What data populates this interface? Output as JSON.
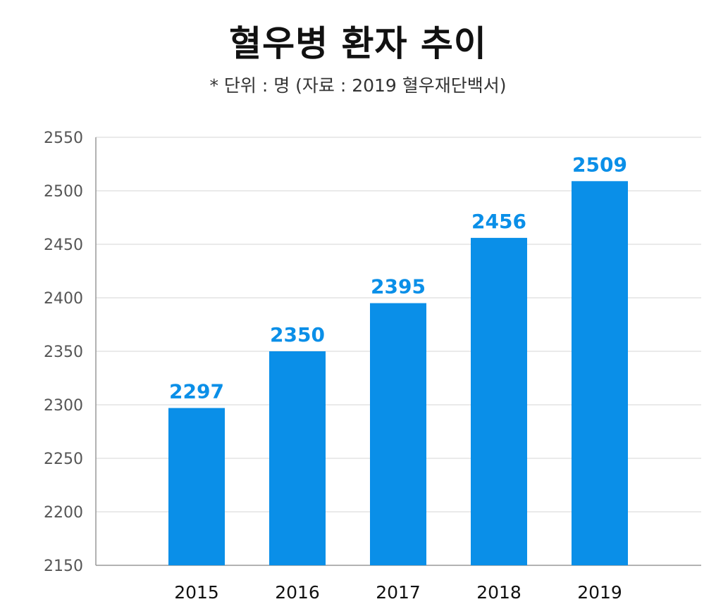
{
  "chart_data": {
    "type": "bar",
    "title": "혈우병 환자 추이",
    "subtitle": "* 단위 : 명 (자료 : 2019 혈우재단백서)",
    "categories": [
      "2015",
      "2016",
      "2017",
      "2018",
      "2019"
    ],
    "values": [
      2297,
      2350,
      2395,
      2456,
      2509
    ],
    "data_labels": [
      "2297",
      "2350",
      "2395",
      "2456",
      "2509"
    ],
    "ylim": [
      2150,
      2550
    ],
    "yticks": [
      2150,
      2200,
      2250,
      2300,
      2350,
      2400,
      2450,
      2500,
      2550
    ],
    "xlabel": "",
    "ylabel": "",
    "grid": true,
    "legend": "none",
    "colors": {
      "bar": "#0a8fe8",
      "data_label": "#0a8fe8",
      "grid": "#dddddd",
      "axis": "#999999"
    }
  }
}
